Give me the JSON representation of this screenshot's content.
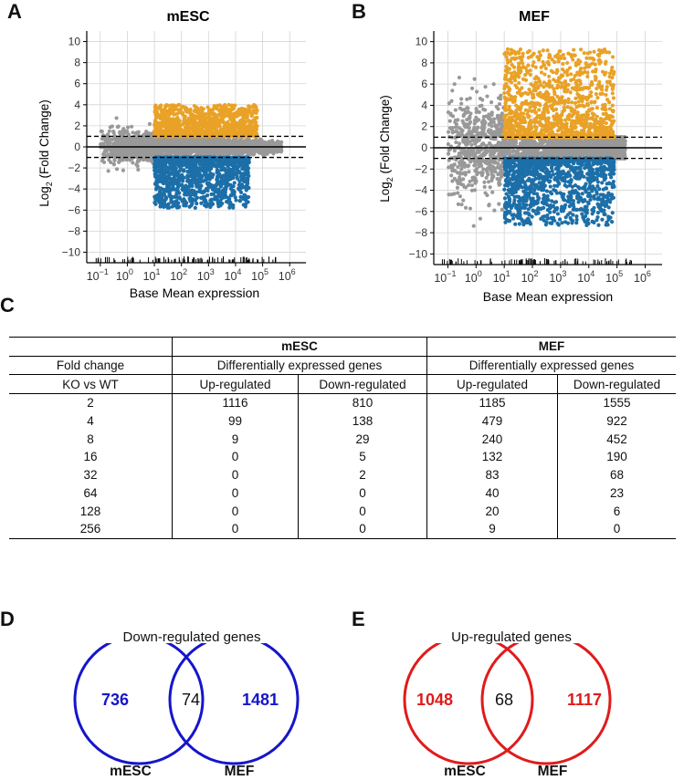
{
  "panels": {
    "a": "A",
    "b": "B",
    "c": "C",
    "d": "D",
    "e": "E"
  },
  "chart_data": [
    {
      "type": "scatter",
      "panel": "A",
      "title": "mESC",
      "xlabel": "Base Mean expression",
      "ylabel_main": "Log",
      "ylabel_sub": "2",
      "ylabel_tail": " (Fold Change)",
      "x_scale": "log10",
      "xlim_log10": [
        -1.5,
        6.6
      ],
      "ylim": [
        -11,
        11
      ],
      "yticks": [
        "−10",
        "−8",
        "−6",
        "−4",
        "−2",
        "0",
        "2",
        "4",
        "6",
        "8",
        "10"
      ],
      "xtick_base": "10",
      "xtick_exponents": [
        "−1",
        "0",
        "1",
        "2",
        "3",
        "4",
        "5",
        "6"
      ],
      "threshold_lines": [
        1,
        -1
      ],
      "colors": {
        "not_significant": "#999999",
        "up": "#E9A227",
        "down": "#1C6FA8"
      },
      "point_clouds": {
        "not_significant": {
          "x_range_log10": [
            -1.0,
            5.7
          ],
          "y_spread": 1.9
        },
        "up": {
          "x_range_log10": [
            1.0,
            4.8
          ],
          "y_range": [
            1,
            4.0
          ]
        },
        "down": {
          "x_range_log10": [
            1.0,
            4.5
          ],
          "y_range": [
            -5.8,
            -1
          ]
        }
      }
    },
    {
      "type": "scatter",
      "panel": "B",
      "title": "MEF",
      "xlabel": "Base Mean expression",
      "ylabel_main": "Log",
      "ylabel_sub": "2",
      "ylabel_tail": " (Fold Change)",
      "x_scale": "log10",
      "xlim_log10": [
        -1.5,
        6.6
      ],
      "ylim": [
        -11,
        11
      ],
      "yticks": [
        "−10",
        "−8",
        "−6",
        "−4",
        "−2",
        "0",
        "2",
        "4",
        "6",
        "8",
        "10"
      ],
      "xtick_base": "10",
      "xtick_exponents": [
        "−1",
        "0",
        "1",
        "2",
        "3",
        "4",
        "5",
        "6"
      ],
      "threshold_lines": [
        1,
        -1
      ],
      "colors": {
        "not_significant": "#999999",
        "up": "#E9A227",
        "down": "#1C6FA8"
      },
      "point_clouds": {
        "not_significant": {
          "x_range_log10": [
            -1.0,
            5.3
          ],
          "y_spread": 6.0
        },
        "up": {
          "x_range_log10": [
            1.0,
            4.9
          ],
          "y_range": [
            1,
            9.3
          ]
        },
        "down": {
          "x_range_log10": [
            1.0,
            4.9
          ],
          "y_range": [
            -7.3,
            -1
          ]
        }
      }
    },
    {
      "type": "table",
      "panel": "C",
      "groups": [
        "mESC",
        "MEF"
      ],
      "group_subheader": "Differentially expressed genes",
      "row_header_1": "Fold change",
      "row_header_2": "KO vs WT",
      "col_up": "Up-regulated",
      "col_down": "Down-regulated",
      "rows": [
        [
          "2",
          "1116",
          "810",
          "1185",
          "1555"
        ],
        [
          "4",
          "99",
          "138",
          "479",
          "922"
        ],
        [
          "8",
          "9",
          "29",
          "240",
          "452"
        ],
        [
          "16",
          "0",
          "5",
          "132",
          "190"
        ],
        [
          "32",
          "0",
          "2",
          "83",
          "68"
        ],
        [
          "64",
          "0",
          "0",
          "40",
          "23"
        ],
        [
          "128",
          "0",
          "0",
          "20",
          "6"
        ],
        [
          "256",
          "0",
          "0",
          "9",
          "0"
        ]
      ]
    }
  ],
  "venn_down": {
    "title": "Down-regulated genes",
    "left_count": "736",
    "overlap": "74",
    "right_count": "1481",
    "left_label": "mESC",
    "right_label": "MEF",
    "color": "#1515CC"
  },
  "venn_up": {
    "title": "Up-regulated genes",
    "left_count": "1048",
    "overlap": "68",
    "right_count": "1117",
    "left_label": "mESC",
    "right_label": "MEF",
    "color": "#E01B1B"
  }
}
